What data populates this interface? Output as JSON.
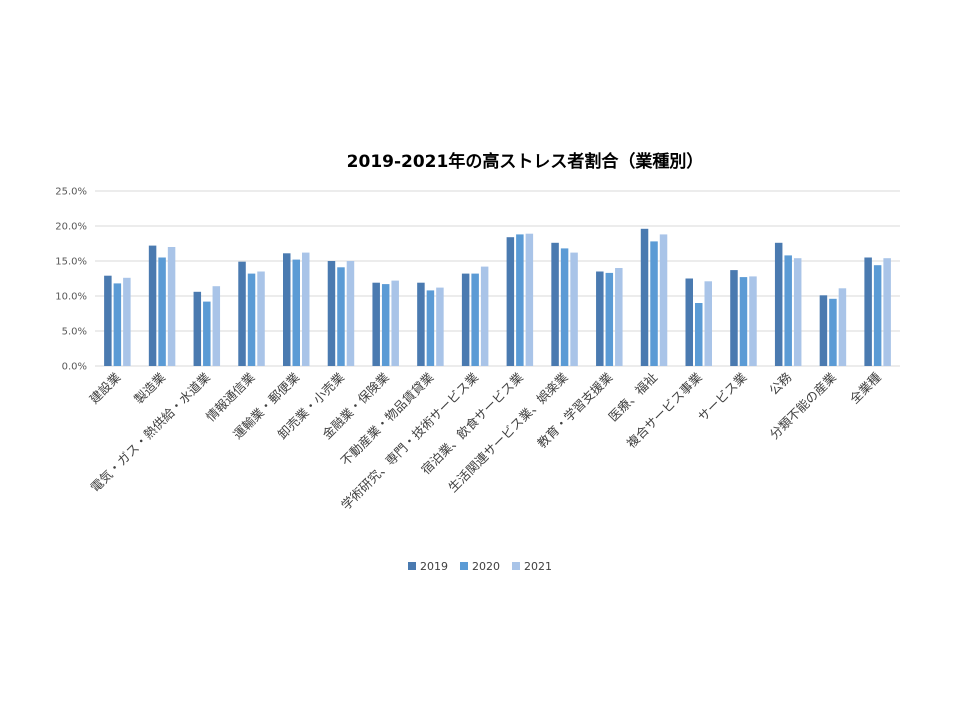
{
  "colors": {
    "2019": "#4a7ab0",
    "2020": "#5b9bd5",
    "2021": "#a9c4e8"
  },
  "chart_data": {
    "type": "bar",
    "title": "2019-2021年の高ストレス者割合（業種別）",
    "xlabel": "",
    "ylabel": "",
    "ylim": [
      0,
      25
    ],
    "yticks": [
      "0.0%",
      "5.0%",
      "10.0%",
      "15.0%",
      "20.0%",
      "25.0%"
    ],
    "grid": true,
    "legend": "bottom",
    "categories": [
      "建設業",
      "製造業",
      "電気・ガス・熱供給・水道業",
      "情報通信業",
      "運輸業・郵便業",
      "卸売業・小売業",
      "金融業・保険業",
      "不動産業・物品賃貸業",
      "学術研究、専門・技術サービス業",
      "宿泊業、飲食サービス業",
      "生活関連サービス業、娯楽業",
      "教育・学習支援業",
      "医療、福祉",
      "複合サービス事業",
      "サービス業",
      "公務",
      "分類不能の産業",
      "全業種"
    ],
    "series": [
      {
        "name": "2019",
        "values": [
          12.9,
          17.2,
          10.6,
          14.9,
          16.1,
          15.0,
          11.9,
          11.9,
          13.2,
          18.4,
          17.6,
          13.5,
          19.6,
          12.5,
          13.7,
          17.6,
          10.1,
          15.5
        ]
      },
      {
        "name": "2020",
        "values": [
          11.8,
          15.5,
          9.2,
          13.2,
          15.2,
          14.1,
          11.7,
          10.8,
          13.2,
          18.8,
          16.8,
          13.3,
          17.8,
          9.0,
          12.7,
          15.8,
          9.6,
          14.4
        ]
      },
      {
        "name": "2021",
        "values": [
          12.6,
          17.0,
          11.4,
          13.5,
          16.2,
          15.0,
          12.2,
          11.2,
          14.2,
          18.9,
          16.2,
          14.0,
          18.8,
          12.1,
          12.8,
          15.4,
          11.1,
          15.4
        ]
      }
    ]
  }
}
